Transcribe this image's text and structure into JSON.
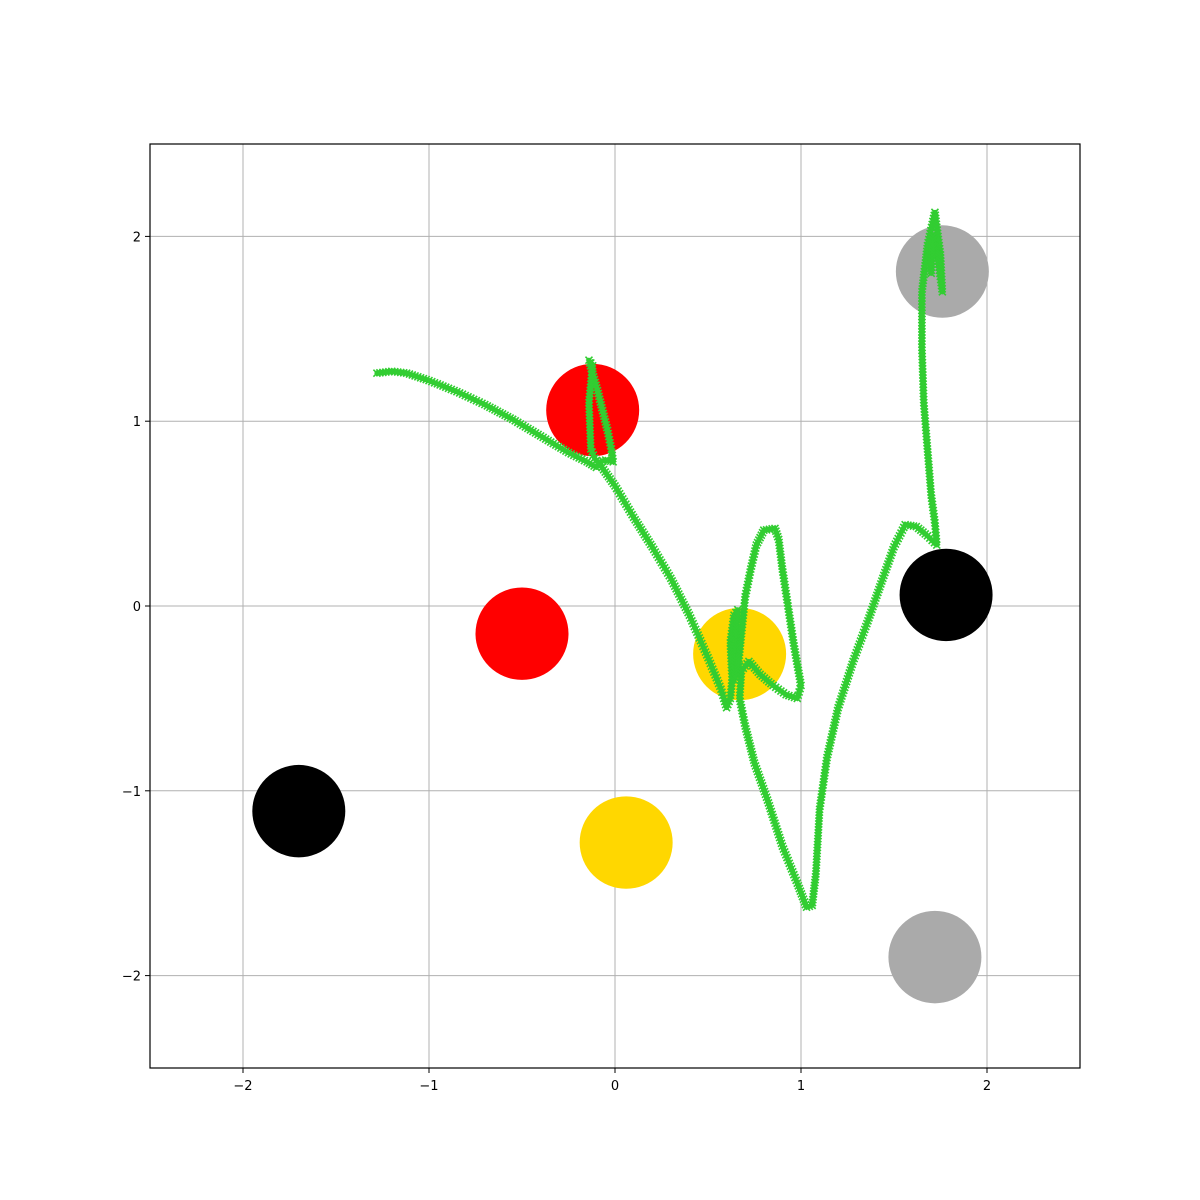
{
  "chart_data": {
    "type": "scatter",
    "title": "",
    "xlabel": "",
    "ylabel": "",
    "xlim": [
      -2.5,
      2.5
    ],
    "ylim": [
      -2.5,
      2.5
    ],
    "grid": true,
    "x_ticks": [
      -2,
      -1,
      0,
      1,
      2
    ],
    "y_ticks": [
      -2,
      -1,
      0,
      1,
      2
    ],
    "x_tick_labels": [
      "−2",
      "−1",
      "0",
      "1",
      "2"
    ],
    "y_tick_labels": [
      "−2",
      "−1",
      "0",
      "1",
      "2"
    ],
    "obstacles": [
      {
        "x": -0.12,
        "y": 1.06,
        "radius": 0.25,
        "color": "#ff0000"
      },
      {
        "x": -0.5,
        "y": -0.15,
        "radius": 0.25,
        "color": "#ff0000"
      },
      {
        "x": 0.67,
        "y": -0.26,
        "radius": 0.25,
        "color": "#ffd700"
      },
      {
        "x": 0.06,
        "y": -1.28,
        "radius": 0.25,
        "color": "#ffd700"
      },
      {
        "x": 1.78,
        "y": 0.06,
        "radius": 0.25,
        "color": "#000000"
      },
      {
        "x": -1.7,
        "y": -1.11,
        "radius": 0.25,
        "color": "#000000"
      },
      {
        "x": 1.76,
        "y": 1.81,
        "radius": 0.25,
        "color": "#aaaaaa"
      },
      {
        "x": 1.72,
        "y": -1.9,
        "radius": 0.25,
        "color": "#aaaaaa"
      }
    ],
    "trajectory": {
      "color": "#32cd32",
      "marker": "x",
      "points": [
        [
          -1.28,
          1.26
        ],
        [
          -1.2,
          1.27
        ],
        [
          -1.12,
          1.26
        ],
        [
          -1.0,
          1.22
        ],
        [
          -0.85,
          1.16
        ],
        [
          -0.7,
          1.09
        ],
        [
          -0.55,
          1.01
        ],
        [
          -0.4,
          0.92
        ],
        [
          -0.25,
          0.83
        ],
        [
          -0.15,
          0.78
        ],
        [
          -0.1,
          0.75
        ],
        [
          -0.08,
          0.78
        ],
        [
          -0.05,
          0.79
        ],
        [
          -0.01,
          0.78
        ],
        [
          -0.02,
          0.85
        ],
        [
          -0.04,
          0.95
        ],
        [
          -0.09,
          1.15
        ],
        [
          -0.14,
          1.33
        ],
        [
          -0.12,
          1.3
        ],
        [
          -0.14,
          1.1
        ],
        [
          -0.13,
          0.85
        ],
        [
          -0.11,
          0.8
        ],
        [
          -0.07,
          0.75
        ],
        [
          0.0,
          0.65
        ],
        [
          0.1,
          0.48
        ],
        [
          0.2,
          0.32
        ],
        [
          0.3,
          0.15
        ],
        [
          0.4,
          -0.05
        ],
        [
          0.5,
          -0.28
        ],
        [
          0.57,
          -0.45
        ],
        [
          0.6,
          -0.55
        ],
        [
          0.62,
          -0.5
        ],
        [
          0.63,
          -0.4
        ],
        [
          0.62,
          -0.2
        ],
        [
          0.64,
          -0.05
        ],
        [
          0.66,
          -0.02
        ],
        [
          0.65,
          -0.2
        ],
        [
          0.64,
          -0.4
        ],
        [
          0.66,
          -0.35
        ],
        [
          0.68,
          -0.15
        ],
        [
          0.7,
          0.05
        ],
        [
          0.73,
          0.2
        ],
        [
          0.76,
          0.33
        ],
        [
          0.8,
          0.41
        ],
        [
          0.86,
          0.42
        ],
        [
          0.88,
          0.36
        ],
        [
          0.9,
          0.2
        ],
        [
          0.93,
          0.0
        ],
        [
          0.96,
          -0.2
        ],
        [
          1.0,
          -0.43
        ],
        [
          0.98,
          -0.5
        ],
        [
          0.92,
          -0.48
        ],
        [
          0.85,
          -0.43
        ],
        [
          0.78,
          -0.37
        ],
        [
          0.72,
          -0.3
        ],
        [
          0.68,
          -0.35
        ],
        [
          0.67,
          -0.5
        ],
        [
          0.7,
          -0.65
        ],
        [
          0.75,
          -0.85
        ],
        [
          0.82,
          -1.05
        ],
        [
          0.9,
          -1.3
        ],
        [
          0.98,
          -1.5
        ],
        [
          1.03,
          -1.63
        ],
        [
          1.06,
          -1.62
        ],
        [
          1.08,
          -1.45
        ],
        [
          1.1,
          -1.1
        ],
        [
          1.14,
          -0.82
        ],
        [
          1.2,
          -0.55
        ],
        [
          1.28,
          -0.3
        ],
        [
          1.36,
          -0.08
        ],
        [
          1.44,
          0.15
        ],
        [
          1.5,
          0.32
        ],
        [
          1.56,
          0.44
        ],
        [
          1.62,
          0.43
        ],
        [
          1.68,
          0.38
        ],
        [
          1.73,
          0.33
        ],
        [
          1.72,
          0.45
        ],
        [
          1.7,
          0.6
        ],
        [
          1.68,
          0.85
        ],
        [
          1.66,
          1.1
        ],
        [
          1.65,
          1.4
        ],
        [
          1.65,
          1.7
        ],
        [
          1.68,
          1.95
        ],
        [
          1.72,
          2.13
        ],
        [
          1.73,
          2.05
        ],
        [
          1.75,
          1.9
        ],
        [
          1.76,
          1.7
        ],
        [
          1.74,
          1.85
        ],
        [
          1.71,
          2.0
        ],
        [
          1.7,
          1.8
        ]
      ]
    }
  }
}
